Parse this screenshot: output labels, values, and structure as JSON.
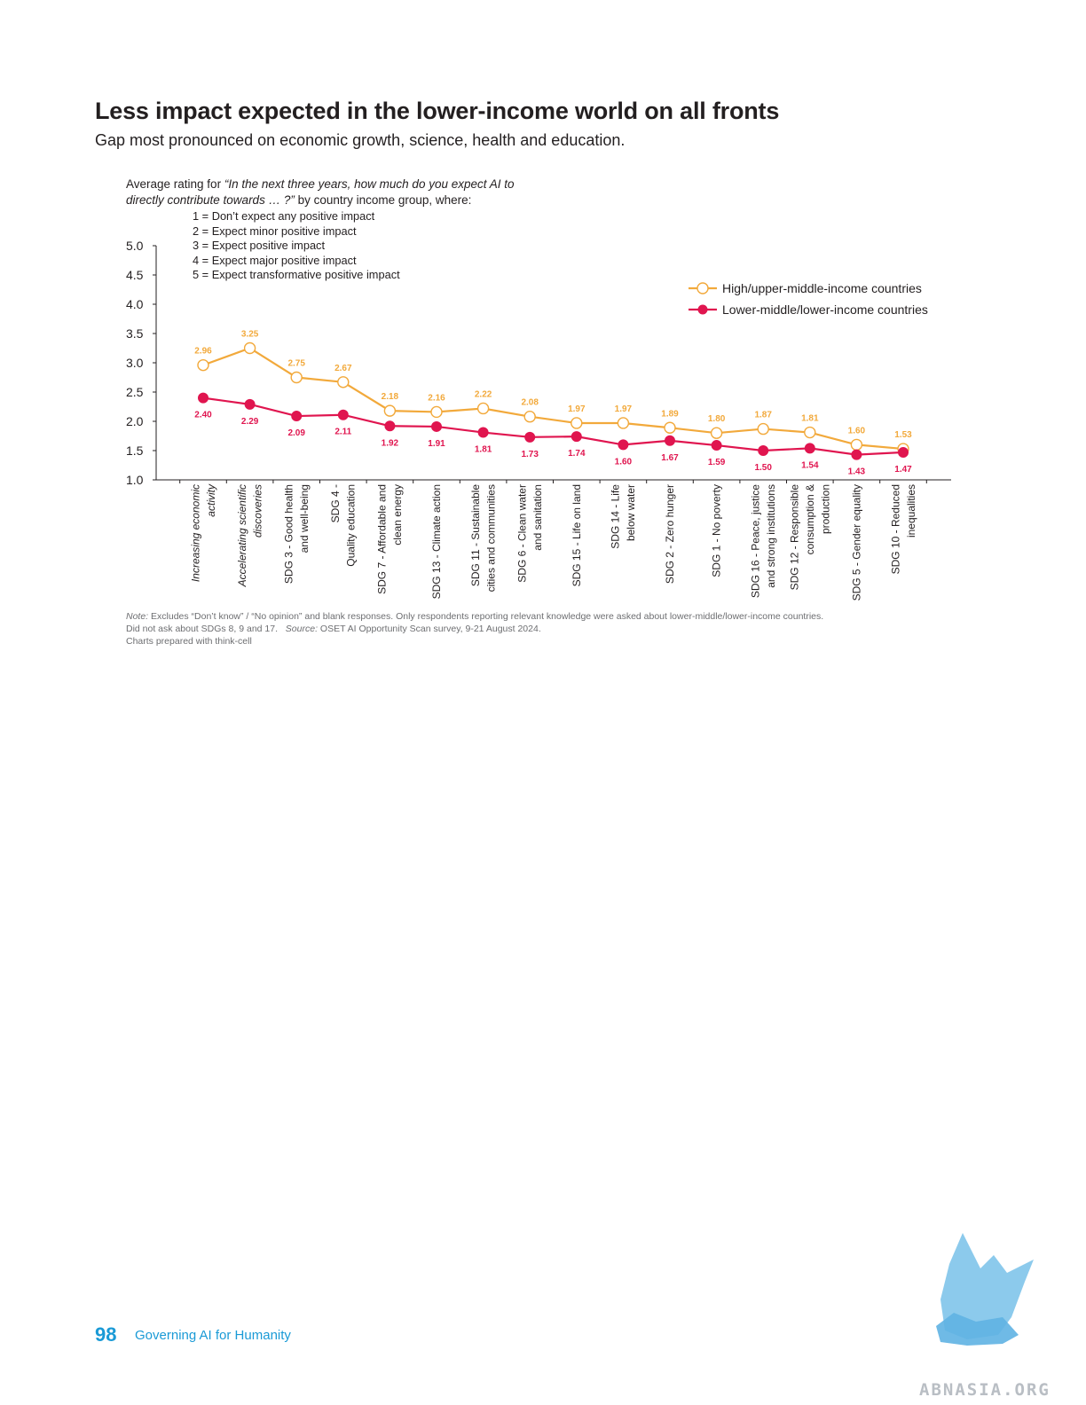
{
  "header": {
    "title": "Less impact expected in the lower-income world on all fronts",
    "subtitle": "Gap most pronounced on economic growth, science, health and education."
  },
  "intro": {
    "prefix": "Average rating for ",
    "question": "“In the next three years, how much do you expect AI to directly contribute towards … ?”",
    "suffix": " by country income group, where:"
  },
  "scale_items": [
    "1 = Don’t expect any positive impact",
    "2 = Expect minor positive impact",
    "3 = Expect positive impact",
    "4 = Expect major positive impact",
    "5 = Expect transformative positive impact"
  ],
  "chart_data": {
    "type": "line",
    "ylim": [
      1.0,
      5.0
    ],
    "yticks": [
      "1.0",
      "1.5",
      "2.0",
      "2.5",
      "3.0",
      "3.5",
      "4.0",
      "4.5",
      "5.0"
    ],
    "categories": [
      {
        "lines": [
          "Increasing economic",
          "activity"
        ],
        "italic": true
      },
      {
        "lines": [
          "Accelerating scientific",
          "discoveries"
        ],
        "italic": true
      },
      {
        "lines": [
          "SDG 3 - Good health",
          "and well-being"
        ],
        "italic": false
      },
      {
        "lines": [
          "SDG 4 -",
          "Quality education"
        ],
        "italic": false
      },
      {
        "lines": [
          "SDG 7 - Affordable and",
          "clean energy"
        ],
        "italic": false
      },
      {
        "lines": [
          "SDG 13 - Climate action"
        ],
        "italic": false
      },
      {
        "lines": [
          "SDG 11 - Sustainable",
          "cities and communities"
        ],
        "italic": false
      },
      {
        "lines": [
          "SDG 6 - Clean water",
          "and sanitation"
        ],
        "italic": false
      },
      {
        "lines": [
          "SDG 15 - Life on land"
        ],
        "italic": false
      },
      {
        "lines": [
          "SDG 14 - Life",
          "below water"
        ],
        "italic": false
      },
      {
        "lines": [
          "SDG 2 - Zero hunger"
        ],
        "italic": false
      },
      {
        "lines": [
          "SDG 1 - No poverty"
        ],
        "italic": false
      },
      {
        "lines": [
          "SDG 16 - Peace, justice",
          "and strong institutions"
        ],
        "italic": false
      },
      {
        "lines": [
          "SDG 12 - Responsible",
          "consumption &",
          "production"
        ],
        "italic": false
      },
      {
        "lines": [
          "SDG 5 - Gender equality"
        ],
        "italic": false
      },
      {
        "lines": [
          "SDG 10 - Reduced",
          "inequalities"
        ],
        "italic": false
      }
    ],
    "series": [
      {
        "name": "High/upper-middle-income countries",
        "color": "#f2a93b",
        "labels": [
          "2.96",
          "3.25",
          "2.75",
          "2.67",
          "2.18",
          "2.16",
          "2.22",
          "2.08",
          "1.97",
          "1.97",
          "1.89",
          "1.80",
          "1.87",
          "1.81",
          "1.60",
          "1.53"
        ],
        "values": [
          2.96,
          3.25,
          2.75,
          2.67,
          2.18,
          2.16,
          2.22,
          2.08,
          1.97,
          1.97,
          1.89,
          1.8,
          1.87,
          1.81,
          1.6,
          1.53
        ]
      },
      {
        "name": "Lower-middle/lower-income countries",
        "color": "#e0154f",
        "labels": [
          "2.40",
          "2.29",
          "2.09",
          "2.11",
          "1.92",
          "1.91",
          "1.81",
          "1.73",
          "1.74",
          "1.60",
          "1.67",
          "1.59",
          "1.50",
          "1.54",
          "1.43",
          "1.47"
        ],
        "values": [
          2.4,
          2.29,
          2.09,
          2.11,
          1.92,
          1.91,
          1.81,
          1.73,
          1.74,
          1.6,
          1.67,
          1.59,
          1.5,
          1.54,
          1.43,
          1.47
        ]
      }
    ],
    "legend": "top-right"
  },
  "notes": {
    "note_label": "Note:",
    "note_text": " Excludes “Don’t know” / “No opinion” and blank responses. Only respondents reporting relevant knowledge were asked about lower-middle/lower-income countries.",
    "line2": "Did not ask about SDGs 8, 9 and 17.",
    "source_label": "Source:",
    "source_text": " OSET AI Opportunity Scan survey, 9-21 August 2024.",
    "line3": "Charts prepared with think-cell"
  },
  "footer": {
    "page_number": "98",
    "publication": "Governing AI for Humanity"
  },
  "watermark": {
    "text": "ABNASIA.ORG"
  }
}
